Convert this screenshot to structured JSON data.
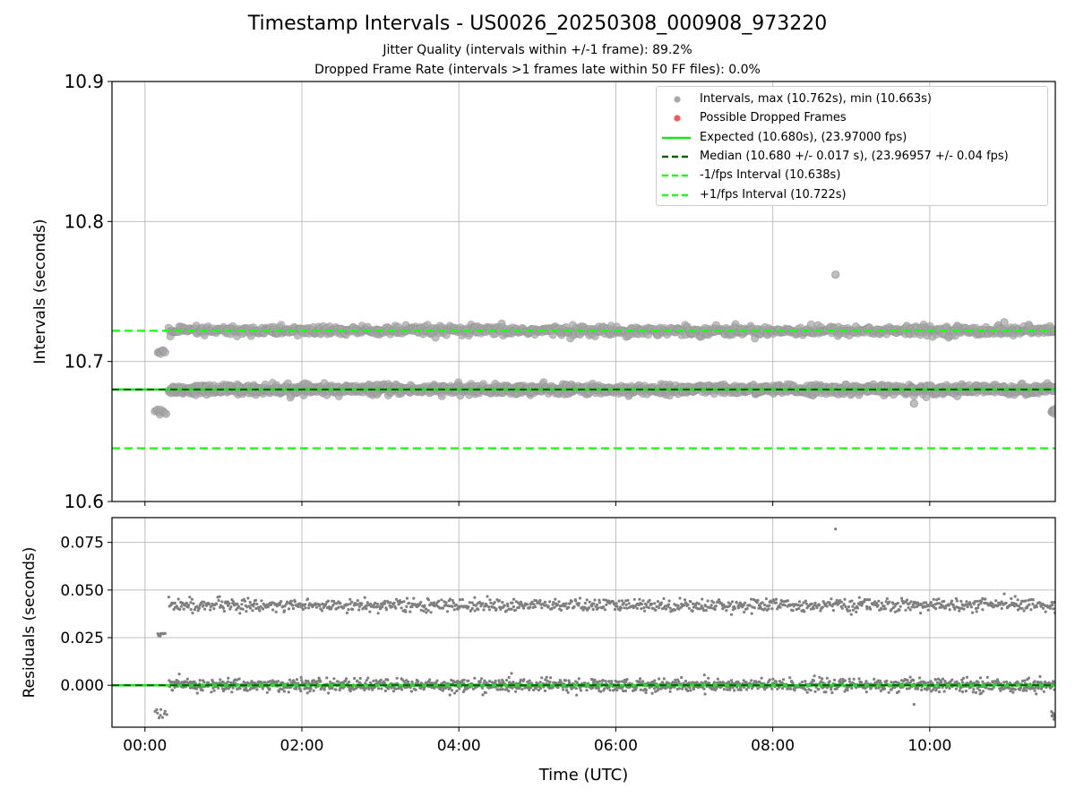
{
  "title": "Timestamp Intervals - US0026_20250308_000908_973220",
  "subtitle1": "Jitter Quality (intervals within +/-1 frame): 89.2%",
  "subtitle2": "Dropped Frame Rate (intervals >1 frames late within 50 FF files): 0.0%",
  "colors": {
    "points": "#7f7f7f",
    "points_light": "#a8a8a8",
    "dropped": "#f05a5a",
    "expected": "#19e619",
    "median": "#006400",
    "fps_bounds": "#19ff19",
    "grid": "#b0b0b0"
  },
  "legend": [
    {
      "label": "Intervals, max (10.762s), min (10.663s)",
      "symbol": "dot",
      "color": "#a8a8a8"
    },
    {
      "label": "Possible Dropped Frames",
      "symbol": "dot",
      "color": "#f05a5a"
    },
    {
      "label": "Expected (10.680s), (23.97000 fps)",
      "symbol": "solid",
      "color": "#19e619"
    },
    {
      "label": "Median (10.680 +/- 0.017 s), (23.96957 +/- 0.04 fps)",
      "symbol": "dashed",
      "color": "#006400"
    },
    {
      "label": "-1/fps Interval (10.638s)",
      "symbol": "dashed",
      "color": "#19ff19"
    },
    {
      "label": "+1/fps Interval (10.722s)",
      "symbol": "dashed",
      "color": "#19ff19"
    }
  ],
  "chart_data": [
    {
      "type": "scatter",
      "panel": "top",
      "ylabel": "Intervals (seconds)",
      "ylim": [
        10.6,
        10.9
      ],
      "yticks": [
        "10.6",
        "10.7",
        "10.8",
        "10.9"
      ],
      "xlim_hours": [
        -0.42,
        11.6
      ],
      "grid": true,
      "legend_position": "top-right",
      "bands": [
        {
          "name": "main",
          "x_range_hours": [
            0.3,
            11.6
          ],
          "center": 10.68,
          "spread": 0.003
        },
        {
          "name": "late",
          "x_range_hours": [
            0.3,
            11.6
          ],
          "center": 10.722,
          "spread": 0.003
        },
        {
          "name": "early-cluster-low",
          "x_range_hours": [
            0.12,
            0.28
          ],
          "center": 10.664,
          "spread": 0.002
        },
        {
          "name": "early-cluster-high",
          "x_range_hours": [
            0.16,
            0.26
          ],
          "center": 10.707,
          "spread": 0.001
        },
        {
          "name": "end-cluster-low",
          "x_range_hours": [
            11.55,
            11.6
          ],
          "center": 10.665,
          "spread": 0.002
        }
      ],
      "outliers": [
        {
          "x_hours": 8.8,
          "y": 10.762
        },
        {
          "x_hours": 9.8,
          "y": 10.67
        },
        {
          "x_hours": 10.95,
          "y": 10.728
        }
      ],
      "lines": [
        {
          "name": "Expected",
          "y": 10.68,
          "style": "solid"
        },
        {
          "name": "Median",
          "y": 10.68,
          "style": "dashed"
        },
        {
          "name": "-1/fps Interval",
          "y": 10.638,
          "style": "dashed"
        },
        {
          "name": "+1/fps Interval",
          "y": 10.722,
          "style": "dashed"
        }
      ]
    },
    {
      "type": "scatter",
      "panel": "bottom",
      "xlabel": "Time (UTC)",
      "ylabel": "Residuals (seconds)",
      "ylim": [
        -0.022,
        0.088
      ],
      "yticks": [
        "0.000",
        "0.025",
        "0.050",
        "0.075"
      ],
      "xticks": [
        "00:00",
        "02:00",
        "04:00",
        "06:00",
        "08:00",
        "10:00"
      ],
      "xlim_hours": [
        -0.42,
        11.6
      ],
      "grid": true,
      "bands": [
        {
          "name": "main",
          "x_range_hours": [
            0.3,
            11.6
          ],
          "center": 0.0,
          "spread": 0.003
        },
        {
          "name": "late",
          "x_range_hours": [
            0.3,
            11.6
          ],
          "center": 0.042,
          "spread": 0.003
        },
        {
          "name": "early-cluster-low",
          "x_range_hours": [
            0.12,
            0.28
          ],
          "center": -0.015,
          "spread": 0.002
        },
        {
          "name": "early-cluster-high",
          "x_range_hours": [
            0.16,
            0.26
          ],
          "center": 0.027,
          "spread": 0.001
        },
        {
          "name": "end-cluster-low",
          "x_range_hours": [
            11.55,
            11.6
          ],
          "center": -0.015,
          "spread": 0.002
        }
      ],
      "outliers": [
        {
          "x_hours": 8.8,
          "y": 0.082
        },
        {
          "x_hours": 9.8,
          "y": -0.01
        },
        {
          "x_hours": 10.95,
          "y": 0.048
        }
      ],
      "lines": [
        {
          "name": "Expected",
          "y": 0.0,
          "style": "solid"
        },
        {
          "name": "Median",
          "y": 0.0,
          "style": "dashed"
        }
      ]
    }
  ]
}
